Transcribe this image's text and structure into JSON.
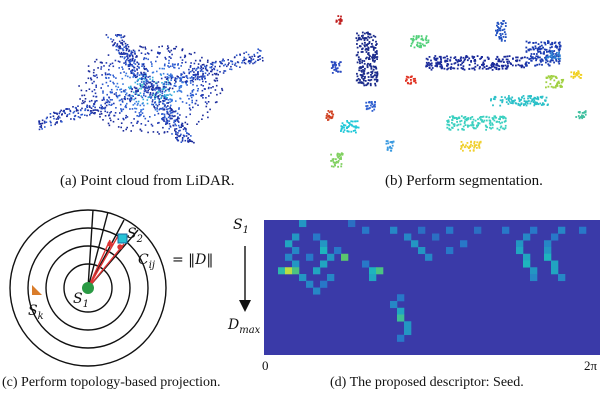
{
  "captions": {
    "a": "(a) Point cloud from LiDAR.",
    "b": "(b) Perform segmentation.",
    "c": "(c) Perform topology-based projection.",
    "d": "(d) The proposed descriptor: Seed."
  },
  "labels_c": {
    "s2": "S",
    "s2_sub": "2",
    "c": "C",
    "c_sub": "ij",
    "norm": "= ‖D‖",
    "s1": "S",
    "s1_sub": "1",
    "sk": "S",
    "sk_sub": "k"
  },
  "labels_d": {
    "top": "S",
    "top_sub": "1",
    "bottom": "D",
    "bottom_sub": "max",
    "x_start": "0",
    "x_end": "2π"
  },
  "colors": {
    "heat_bg": "#3a3aa8",
    "ring": "#111111",
    "seed_green": "#2a9a44",
    "sk_orange": "#d97c2b",
    "s2_cyan": "#27c3d6"
  },
  "chart_data": {
    "type": "heatmap",
    "rows": 20,
    "cols": 48,
    "hot_cells": [
      {
        "r": 0,
        "c": 5,
        "v": 0.45
      },
      {
        "r": 0,
        "c": 12,
        "v": 0.3
      },
      {
        "r": 1,
        "c": 14,
        "v": 0.35
      },
      {
        "r": 1,
        "c": 18,
        "v": 0.4
      },
      {
        "r": 1,
        "c": 22,
        "v": 0.3
      },
      {
        "r": 1,
        "c": 26,
        "v": 0.35
      },
      {
        "r": 1,
        "c": 30,
        "v": 0.3
      },
      {
        "r": 1,
        "c": 34,
        "v": 0.35
      },
      {
        "r": 1,
        "c": 38,
        "v": 0.35
      },
      {
        "r": 1,
        "c": 42,
        "v": 0.4
      },
      {
        "r": 1,
        "c": 45,
        "v": 0.35
      },
      {
        "r": 2,
        "c": 4,
        "v": 0.45
      },
      {
        "r": 2,
        "c": 7,
        "v": 0.35
      },
      {
        "r": 2,
        "c": 20,
        "v": 0.4
      },
      {
        "r": 2,
        "c": 24,
        "v": 0.3
      },
      {
        "r": 2,
        "c": 37,
        "v": 0.4
      },
      {
        "r": 2,
        "c": 41,
        "v": 0.35
      },
      {
        "r": 3,
        "c": 3,
        "v": 0.5
      },
      {
        "r": 3,
        "c": 8,
        "v": 0.45
      },
      {
        "r": 3,
        "c": 21,
        "v": 0.45
      },
      {
        "r": 3,
        "c": 28,
        "v": 0.35
      },
      {
        "r": 3,
        "c": 36,
        "v": 0.45
      },
      {
        "r": 3,
        "c": 40,
        "v": 0.4
      },
      {
        "r": 4,
        "c": 4,
        "v": 0.4
      },
      {
        "r": 4,
        "c": 8,
        "v": 0.55
      },
      {
        "r": 4,
        "c": 10,
        "v": 0.35
      },
      {
        "r": 4,
        "c": 22,
        "v": 0.45
      },
      {
        "r": 4,
        "c": 26,
        "v": 0.35
      },
      {
        "r": 4,
        "c": 36,
        "v": 0.5
      },
      {
        "r": 4,
        "c": 40,
        "v": 0.45
      },
      {
        "r": 5,
        "c": 3,
        "v": 0.4
      },
      {
        "r": 5,
        "c": 6,
        "v": 0.35
      },
      {
        "r": 5,
        "c": 9,
        "v": 0.45
      },
      {
        "r": 5,
        "c": 11,
        "v": 0.75
      },
      {
        "r": 5,
        "c": 23,
        "v": 0.4
      },
      {
        "r": 5,
        "c": 37,
        "v": 0.5
      },
      {
        "r": 5,
        "c": 40,
        "v": 0.55
      },
      {
        "r": 6,
        "c": 4,
        "v": 0.45
      },
      {
        "r": 6,
        "c": 8,
        "v": 0.5
      },
      {
        "r": 6,
        "c": 14,
        "v": 0.35
      },
      {
        "r": 6,
        "c": 37,
        "v": 0.55
      },
      {
        "r": 6,
        "c": 41,
        "v": 0.5
      },
      {
        "r": 7,
        "c": 2,
        "v": 0.6
      },
      {
        "r": 7,
        "c": 3,
        "v": 0.9
      },
      {
        "r": 7,
        "c": 4,
        "v": 0.7
      },
      {
        "r": 7,
        "c": 7,
        "v": 0.5
      },
      {
        "r": 7,
        "c": 15,
        "v": 0.55
      },
      {
        "r": 7,
        "c": 16,
        "v": 0.7
      },
      {
        "r": 7,
        "c": 38,
        "v": 0.45
      },
      {
        "r": 7,
        "c": 41,
        "v": 0.5
      },
      {
        "r": 8,
        "c": 5,
        "v": 0.45
      },
      {
        "r": 8,
        "c": 9,
        "v": 0.4
      },
      {
        "r": 8,
        "c": 15,
        "v": 0.5
      },
      {
        "r": 8,
        "c": 38,
        "v": 0.4
      },
      {
        "r": 8,
        "c": 42,
        "v": 0.4
      },
      {
        "r": 9,
        "c": 6,
        "v": 0.4
      },
      {
        "r": 9,
        "c": 8,
        "v": 0.35
      },
      {
        "r": 10,
        "c": 7,
        "v": 0.4
      },
      {
        "r": 11,
        "c": 19,
        "v": 0.35
      },
      {
        "r": 12,
        "c": 18,
        "v": 0.4
      },
      {
        "r": 13,
        "c": 19,
        "v": 0.5
      },
      {
        "r": 14,
        "c": 19,
        "v": 0.65
      },
      {
        "r": 15,
        "c": 20,
        "v": 0.45
      },
      {
        "r": 16,
        "c": 20,
        "v": 0.45
      },
      {
        "r": 17,
        "c": 19,
        "v": 0.35
      }
    ]
  }
}
